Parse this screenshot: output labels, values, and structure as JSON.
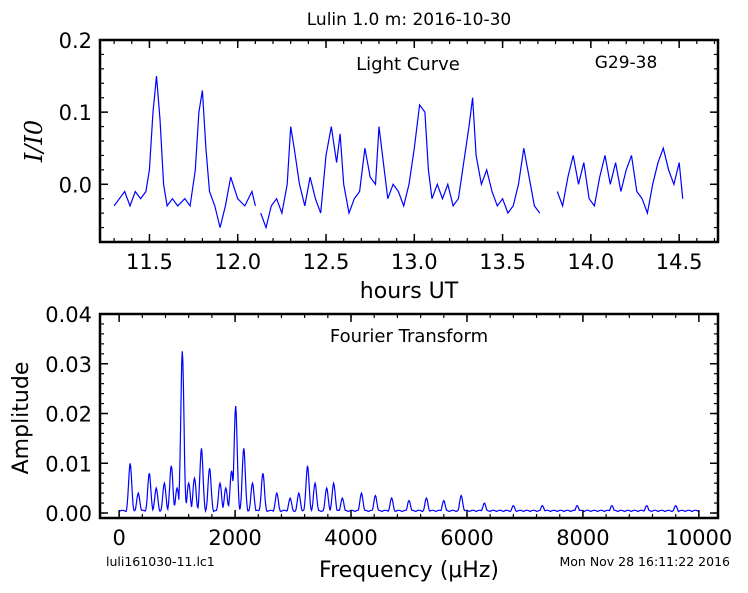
{
  "figure": {
    "title": "Lulin 1.0 m:  2016-10-30",
    "footer_left": "luli161030-11.lc1",
    "footer_right": "Mon Nov 28 16:11:22 2016"
  },
  "colors": {
    "line": "#0000ff",
    "axes": "#000000",
    "background": "#ffffff"
  },
  "chart_data": [
    {
      "type": "line",
      "panel_title": "Light Curve",
      "object_label": "G29-38",
      "xlabel": "hours UT",
      "ylabel": "I/I0",
      "xlim": [
        11.22,
        14.72
      ],
      "ylim": [
        -0.08,
        0.2
      ],
      "xticks": [
        11.5,
        12.0,
        12.5,
        13.0,
        13.5,
        14.0,
        14.5
      ],
      "xtick_labels": [
        "11.5",
        "12.0",
        "12.5",
        "13.0",
        "13.5",
        "14.0",
        "14.5"
      ],
      "yticks": [
        0.0,
        0.1,
        0.2
      ],
      "ytick_labels": [
        "0.0",
        "0.1",
        "0.2"
      ],
      "grid": false,
      "segments": [
        {
          "x": [
            11.3,
            11.33,
            11.36,
            11.39,
            11.42,
            11.45,
            11.48,
            11.5,
            11.52,
            11.54,
            11.56,
            11.58,
            11.6,
            11.63,
            11.66,
            11.7,
            11.73,
            11.76,
            11.78,
            11.8,
            11.82,
            11.84,
            11.87,
            11.9,
            11.93,
            11.96,
            12.0,
            12.04,
            12.08,
            12.1
          ],
          "y": [
            -0.03,
            -0.02,
            -0.01,
            -0.03,
            -0.01,
            -0.02,
            -0.01,
            0.02,
            0.1,
            0.15,
            0.09,
            0.0,
            -0.03,
            -0.02,
            -0.03,
            -0.02,
            -0.03,
            0.02,
            0.1,
            0.13,
            0.05,
            -0.01,
            -0.03,
            -0.06,
            -0.03,
            0.01,
            -0.02,
            -0.03,
            -0.01,
            -0.03
          ]
        },
        {
          "x": [
            12.13,
            12.16,
            12.19,
            12.22,
            12.25,
            12.28,
            12.3,
            12.32,
            12.35,
            12.38,
            12.41,
            12.44,
            12.47,
            12.5,
            12.53,
            12.56,
            12.58,
            12.6,
            12.63,
            12.66,
            12.69,
            12.72,
            12.75,
            12.78,
            12.8,
            12.82,
            12.85,
            12.88,
            12.91,
            12.94,
            12.97,
            13.0,
            13.03,
            13.06,
            13.08,
            13.1,
            13.13,
            13.16,
            13.19,
            13.22,
            13.25,
            13.28,
            13.31,
            13.33,
            13.35,
            13.38,
            13.41,
            13.44,
            13.47,
            13.5,
            13.53,
            13.56,
            13.59,
            13.62,
            13.65,
            13.68,
            13.71
          ],
          "y": [
            -0.04,
            -0.06,
            -0.03,
            -0.02,
            -0.04,
            0.0,
            0.08,
            0.05,
            0.0,
            -0.03,
            0.01,
            -0.02,
            -0.04,
            0.04,
            0.08,
            0.03,
            0.07,
            0.0,
            -0.04,
            -0.02,
            -0.01,
            0.05,
            0.01,
            0.0,
            0.08,
            0.04,
            -0.02,
            0.0,
            -0.01,
            -0.03,
            0.0,
            0.05,
            0.11,
            0.1,
            0.02,
            -0.02,
            0.0,
            -0.02,
            0.0,
            -0.03,
            -0.02,
            0.03,
            0.08,
            0.12,
            0.04,
            0.0,
            0.02,
            -0.01,
            -0.03,
            -0.02,
            -0.04,
            -0.03,
            0.0,
            0.05,
            0.01,
            -0.03,
            -0.04
          ]
        },
        {
          "x": [
            13.81,
            13.84,
            13.87,
            13.9,
            13.93,
            13.96,
            13.99,
            14.02,
            14.05,
            14.08,
            14.11,
            14.14,
            14.17,
            14.2,
            14.23,
            14.26,
            14.29,
            14.32,
            14.35,
            14.38,
            14.41,
            14.44,
            14.47,
            14.5,
            14.52
          ],
          "y": [
            -0.01,
            -0.03,
            0.01,
            0.04,
            0.0,
            0.03,
            -0.02,
            -0.03,
            0.01,
            0.04,
            0.0,
            0.03,
            -0.01,
            0.02,
            0.04,
            -0.01,
            -0.02,
            -0.04,
            0.0,
            0.03,
            0.05,
            0.02,
            0.0,
            0.03,
            -0.02
          ]
        }
      ]
    },
    {
      "type": "line",
      "panel_title": "Fourier Transform",
      "xlabel": "Frequency (μHz)",
      "ylabel": "Amplitude",
      "xlim": [
        -330,
        10330
      ],
      "ylim": [
        -0.001,
        0.04
      ],
      "xticks": [
        0,
        2000,
        4000,
        6000,
        8000,
        10000
      ],
      "xtick_labels": [
        "0",
        "2000",
        "4000",
        "6000",
        "8000",
        "10000"
      ],
      "yticks": [
        0.0,
        0.01,
        0.02,
        0.03,
        0.04
      ],
      "ytick_labels": [
        "0.00",
        "0.01",
        "0.02",
        "0.03",
        "0.04"
      ],
      "grid": false,
      "peaks": [
        {
          "f": 190,
          "a": 0.01
        },
        {
          "f": 330,
          "a": 0.004
        },
        {
          "f": 520,
          "a": 0.008
        },
        {
          "f": 640,
          "a": 0.005
        },
        {
          "f": 780,
          "a": 0.006
        },
        {
          "f": 900,
          "a": 0.0095
        },
        {
          "f": 1000,
          "a": 0.005
        },
        {
          "f": 1090,
          "a": 0.0325
        },
        {
          "f": 1200,
          "a": 0.006
        },
        {
          "f": 1300,
          "a": 0.007
        },
        {
          "f": 1420,
          "a": 0.013
        },
        {
          "f": 1560,
          "a": 0.009
        },
        {
          "f": 1740,
          "a": 0.006
        },
        {
          "f": 1840,
          "a": 0.005
        },
        {
          "f": 1940,
          "a": 0.0085
        },
        {
          "f": 2010,
          "a": 0.0215
        },
        {
          "f": 2150,
          "a": 0.013
        },
        {
          "f": 2300,
          "a": 0.006
        },
        {
          "f": 2480,
          "a": 0.008
        },
        {
          "f": 2720,
          "a": 0.004
        },
        {
          "f": 2950,
          "a": 0.003
        },
        {
          "f": 3100,
          "a": 0.004
        },
        {
          "f": 3250,
          "a": 0.0095
        },
        {
          "f": 3380,
          "a": 0.006
        },
        {
          "f": 3580,
          "a": 0.005
        },
        {
          "f": 3700,
          "a": 0.006
        },
        {
          "f": 3850,
          "a": 0.003
        },
        {
          "f": 4180,
          "a": 0.004
        },
        {
          "f": 4420,
          "a": 0.0035
        },
        {
          "f": 4700,
          "a": 0.003
        },
        {
          "f": 5000,
          "a": 0.0025
        },
        {
          "f": 5300,
          "a": 0.003
        },
        {
          "f": 5600,
          "a": 0.0025
        },
        {
          "f": 5900,
          "a": 0.0035
        },
        {
          "f": 6300,
          "a": 0.002
        },
        {
          "f": 6800,
          "a": 0.0015
        },
        {
          "f": 7300,
          "a": 0.0015
        },
        {
          "f": 7900,
          "a": 0.0015
        },
        {
          "f": 8500,
          "a": 0.0015
        },
        {
          "f": 9100,
          "a": 0.0015
        },
        {
          "f": 9600,
          "a": 0.0015
        }
      ],
      "max_frequency": 10000
    }
  ]
}
